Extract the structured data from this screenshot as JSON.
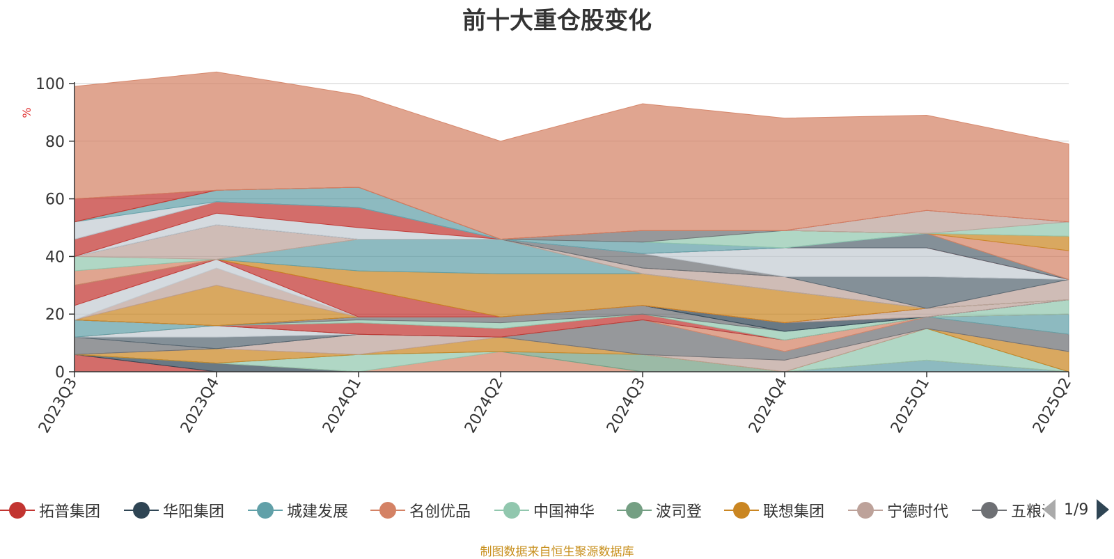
{
  "title": "前十大重仓股变化",
  "footer": "制图数据来自恒生聚源数据库",
  "pager": {
    "text": "1/9"
  },
  "chart_data": {
    "type": "area",
    "stacked": "themeriver",
    "ylabel": "%",
    "ylim": [
      0,
      100
    ],
    "yticks": [
      0,
      20,
      40,
      60,
      80,
      100
    ],
    "grid": true,
    "legend_position": "bottom",
    "categories": [
      "2023Q3",
      "2023Q4",
      "2024Q1",
      "2024Q2",
      "2024Q3",
      "2024Q4",
      "2025Q1",
      "2025Q2"
    ],
    "series": [
      {
        "name": "",
        "color": "#c23531",
        "values": [
          6,
          0,
          0,
          0,
          0,
          0,
          0,
          0
        ]
      },
      {
        "name": "",
        "color": "#2f4554",
        "values": [
          0,
          3,
          0,
          0,
          0,
          0,
          0,
          0
        ]
      },
      {
        "name": "",
        "color": "#61a0a8",
        "values": [
          0,
          0,
          0,
          0,
          0,
          0,
          4,
          0
        ]
      },
      {
        "name": "",
        "color": "#d48265",
        "values": [
          0,
          0,
          0,
          7,
          0,
          0,
          0,
          0
        ]
      },
      {
        "name": "",
        "color": "#91c7ae",
        "values": [
          0,
          0,
          6,
          0,
          0,
          0,
          11,
          0
        ]
      },
      {
        "name": "",
        "color": "#749f83",
        "values": [
          0,
          0,
          0,
          0,
          6,
          0,
          0,
          0
        ]
      },
      {
        "name": "",
        "color": "#ca8622",
        "values": [
          0,
          5,
          0,
          5,
          0,
          0,
          0,
          7
        ]
      },
      {
        "name": "",
        "color": "#bda29a",
        "values": [
          0,
          0,
          7,
          0,
          0,
          4,
          0,
          0
        ]
      },
      {
        "name": "",
        "color": "#6e7074",
        "values": [
          6,
          0,
          0,
          0,
          12,
          3,
          4,
          6
        ]
      },
      {
        "name": "",
        "color": "#546570",
        "values": [
          0,
          4,
          0,
          0,
          0,
          0,
          0,
          0
        ]
      },
      {
        "name": "",
        "color": "#c4ccd3",
        "values": [
          0,
          4,
          0,
          0,
          0,
          0,
          0,
          0
        ]
      },
      {
        "name": "",
        "color": "#d48265",
        "values": [
          0,
          0,
          0,
          0,
          0,
          4,
          0,
          0
        ]
      },
      {
        "name": "",
        "color": "#61a0a8",
        "values": [
          6,
          0,
          0,
          0,
          0,
          0,
          0,
          7
        ]
      },
      {
        "name": "",
        "color": "#c23531",
        "values": [
          0,
          0,
          4,
          3,
          2,
          0,
          0,
          0
        ]
      },
      {
        "name": "",
        "color": "#91c7ae",
        "values": [
          0,
          0,
          1,
          2,
          0,
          3,
          0,
          5
        ]
      },
      {
        "name": "",
        "color": "#6e7074",
        "values": [
          0,
          0,
          1,
          2,
          3,
          0,
          0,
          0
        ]
      },
      {
        "name": "",
        "color": "#2f4554",
        "values": [
          0,
          0,
          0,
          0,
          0,
          3,
          0,
          0
        ]
      },
      {
        "name": "",
        "color": "#bda29a",
        "values": [
          0,
          0,
          0,
          0,
          0,
          0,
          3,
          0
        ]
      },
      {
        "name": "",
        "color": "#ca8622",
        "values": [
          0,
          14,
          0,
          0,
          0,
          0,
          0,
          0
        ]
      },
      {
        "name": "",
        "color": "#bda29a",
        "values": [
          0,
          6,
          0,
          0,
          0,
          0,
          0,
          0
        ]
      },
      {
        "name": "",
        "color": "#c4ccd3",
        "values": [
          5,
          3,
          0,
          0,
          0,
          0,
          0,
          0
        ]
      },
      {
        "name": "",
        "color": "#c23531",
        "values": [
          7,
          0,
          10,
          0,
          0,
          0,
          0,
          0
        ]
      },
      {
        "name": "",
        "color": "#ca8622",
        "values": [
          0,
          0,
          6,
          15,
          11,
          11,
          0,
          0
        ]
      },
      {
        "name": "",
        "color": "#61a0a8",
        "values": [
          0,
          0,
          11,
          12,
          0,
          0,
          0,
          0
        ]
      },
      {
        "name": "",
        "color": "#d48265",
        "values": [
          5,
          0,
          0,
          0,
          0,
          0,
          0,
          0
        ]
      },
      {
        "name": "",
        "color": "#91c7ae",
        "values": [
          5,
          0,
          0,
          0,
          0,
          0,
          0,
          0
        ]
      },
      {
        "name": "",
        "color": "#bda29a",
        "values": [
          0,
          12,
          0,
          0,
          2,
          5,
          0,
          7
        ]
      },
      {
        "name": "",
        "color": "#546570",
        "values": [
          0,
          0,
          0,
          0,
          0,
          0,
          11,
          0
        ]
      },
      {
        "name": "",
        "color": "#6e7074",
        "values": [
          0,
          0,
          0,
          0,
          5,
          0,
          0,
          0
        ]
      },
      {
        "name": "",
        "color": "#c4ccd3",
        "values": [
          0,
          4,
          4,
          0,
          0,
          10,
          10,
          0
        ]
      },
      {
        "name": "",
        "color": "#c23531",
        "values": [
          6,
          4,
          7,
          0,
          0,
          0,
          0,
          0
        ]
      },
      {
        "name": "",
        "color": "#546570",
        "values": [
          0,
          0,
          0,
          0,
          0,
          0,
          5,
          0
        ]
      },
      {
        "name": "",
        "color": "#c4ccd3",
        "values": [
          6,
          0,
          0,
          0,
          0,
          0,
          0,
          0
        ]
      },
      {
        "name": "",
        "color": "#61a0a8",
        "values": [
          0,
          4,
          7,
          0,
          4,
          0,
          0,
          0
        ]
      },
      {
        "name": "",
        "color": "#91c7ae",
        "values": [
          0,
          0,
          0,
          0,
          0,
          6,
          0,
          0
        ]
      },
      {
        "name": "",
        "color": "#6e7074",
        "values": [
          0,
          0,
          0,
          0,
          4,
          0,
          0,
          0
        ]
      },
      {
        "name": "",
        "color": "#d48265",
        "values": [
          0,
          0,
          0,
          0,
          0,
          0,
          0,
          10
        ]
      },
      {
        "name": "",
        "color": "#ca8622",
        "values": [
          0,
          0,
          0,
          0,
          0,
          0,
          0,
          5
        ]
      },
      {
        "name": "",
        "color": "#91c7ae",
        "values": [
          0,
          0,
          0,
          0,
          0,
          0,
          0,
          5
        ]
      },
      {
        "name": "",
        "color": "#bda29a",
        "values": [
          0,
          0,
          0,
          0,
          0,
          0,
          8,
          0
        ]
      },
      {
        "name": "",
        "color": "#c23531",
        "values": [
          8,
          0,
          0,
          0,
          0,
          0,
          0,
          0
        ]
      },
      {
        "name": "",
        "color": "#d48265",
        "values": [
          39,
          41,
          32,
          34,
          44,
          39,
          33,
          27
        ]
      }
    ]
  },
  "legend": [
    {
      "name": "拓普集团",
      "color": "#c23531"
    },
    {
      "name": "华阳集团",
      "color": "#2f4554"
    },
    {
      "name": "城建发展",
      "color": "#61a0a8"
    },
    {
      "name": "名创优品",
      "color": "#d48265"
    },
    {
      "name": "中国神华",
      "color": "#91c7ae"
    },
    {
      "name": "波司登",
      "color": "#749f83"
    },
    {
      "name": "联想集团",
      "color": "#ca8622"
    },
    {
      "name": "宁德时代",
      "color": "#bda29a"
    },
    {
      "name": "五粮液",
      "color": "#6e7074"
    }
  ]
}
